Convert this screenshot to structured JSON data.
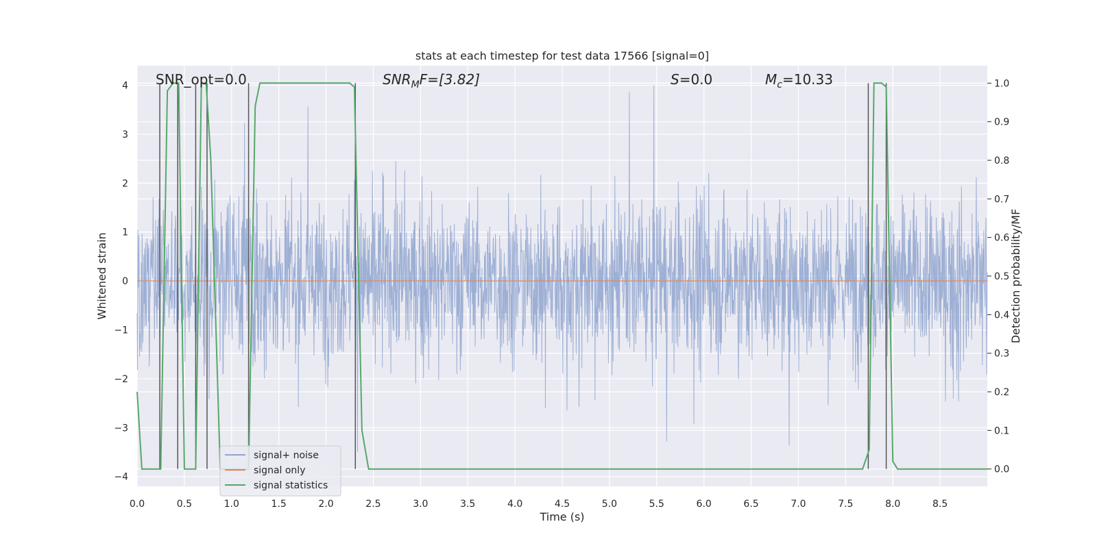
{
  "chart_data": {
    "type": "line",
    "title": "stats at each timestep for test data 17566 [signal=0]",
    "xlabel": "Time (s)",
    "ylabel": "Whitened strain",
    "y2label": "Detection probability/MF",
    "xlim": [
      0,
      9.0
    ],
    "ylim": [
      -4.2,
      4.4
    ],
    "y2lim": [
      -0.045,
      1.045
    ],
    "xticks": [
      "0.0",
      "0.5",
      "1.0",
      "1.5",
      "2.0",
      "2.5",
      "3.0",
      "3.5",
      "4.0",
      "4.5",
      "5.0",
      "5.5",
      "6.0",
      "6.5",
      "7.0",
      "7.5",
      "8.0",
      "8.5"
    ],
    "yticks": [
      "4",
      "3",
      "2",
      "1",
      "0",
      "−1",
      "−2",
      "−3",
      "−4"
    ],
    "y2ticks": [
      "1.0",
      "0.9",
      "0.8",
      "0.7",
      "0.6",
      "0.5",
      "0.4",
      "0.3",
      "0.2",
      "0.1",
      "0.0"
    ],
    "grid": true,
    "legend_placement": "lower-left",
    "annotations": {
      "snr_opt": "SNR_opt=0.0",
      "snr_mf_base": "SNR",
      "snr_mf_sub": "M",
      "snr_mf_rest": "F=[3.82]",
      "s_sym": "S",
      "s_val": "=0.0",
      "mc_base": "M",
      "mc_sub": "c",
      "mc_val": "=10.33"
    },
    "series": [
      {
        "name": "signal+ noise",
        "color": "#8fa5cf",
        "description_values": "noise envelope approx ±1.5 with spikes to ±4",
        "x_range": [
          0,
          9.0
        ],
        "y_range": [
          -3.75,
          4.0
        ]
      },
      {
        "name": "signal only",
        "color": "#dd8452",
        "x": [
          0,
          9.0
        ],
        "y": [
          0,
          0
        ]
      },
      {
        "name": "signal statistics",
        "color": "#55a868",
        "axis": "right",
        "x": [
          0.0,
          0.05,
          0.25,
          0.32,
          0.38,
          0.44,
          0.5,
          0.62,
          0.68,
          0.73,
          0.78,
          0.88,
          1.18,
          1.25,
          1.3,
          2.25,
          2.3,
          2.38,
          2.45,
          7.68,
          7.75,
          7.8,
          7.88,
          7.93,
          8.0,
          8.05,
          9.0
        ],
        "y": [
          0.2,
          0.0,
          0.0,
          0.98,
          1.0,
          1.0,
          0.0,
          0.0,
          1.0,
          1.0,
          0.8,
          0.0,
          0.0,
          0.94,
          1.0,
          1.0,
          0.99,
          0.1,
          0.0,
          0.0,
          0.05,
          1.0,
          1.0,
          0.99,
          0.02,
          0.0,
          0.0
        ]
      }
    ],
    "vertical_markers_x": [
      0.24,
      0.43,
      0.62,
      0.74,
      1.18,
      2.31,
      7.74,
      7.93
    ],
    "marker_color": "#555555"
  }
}
